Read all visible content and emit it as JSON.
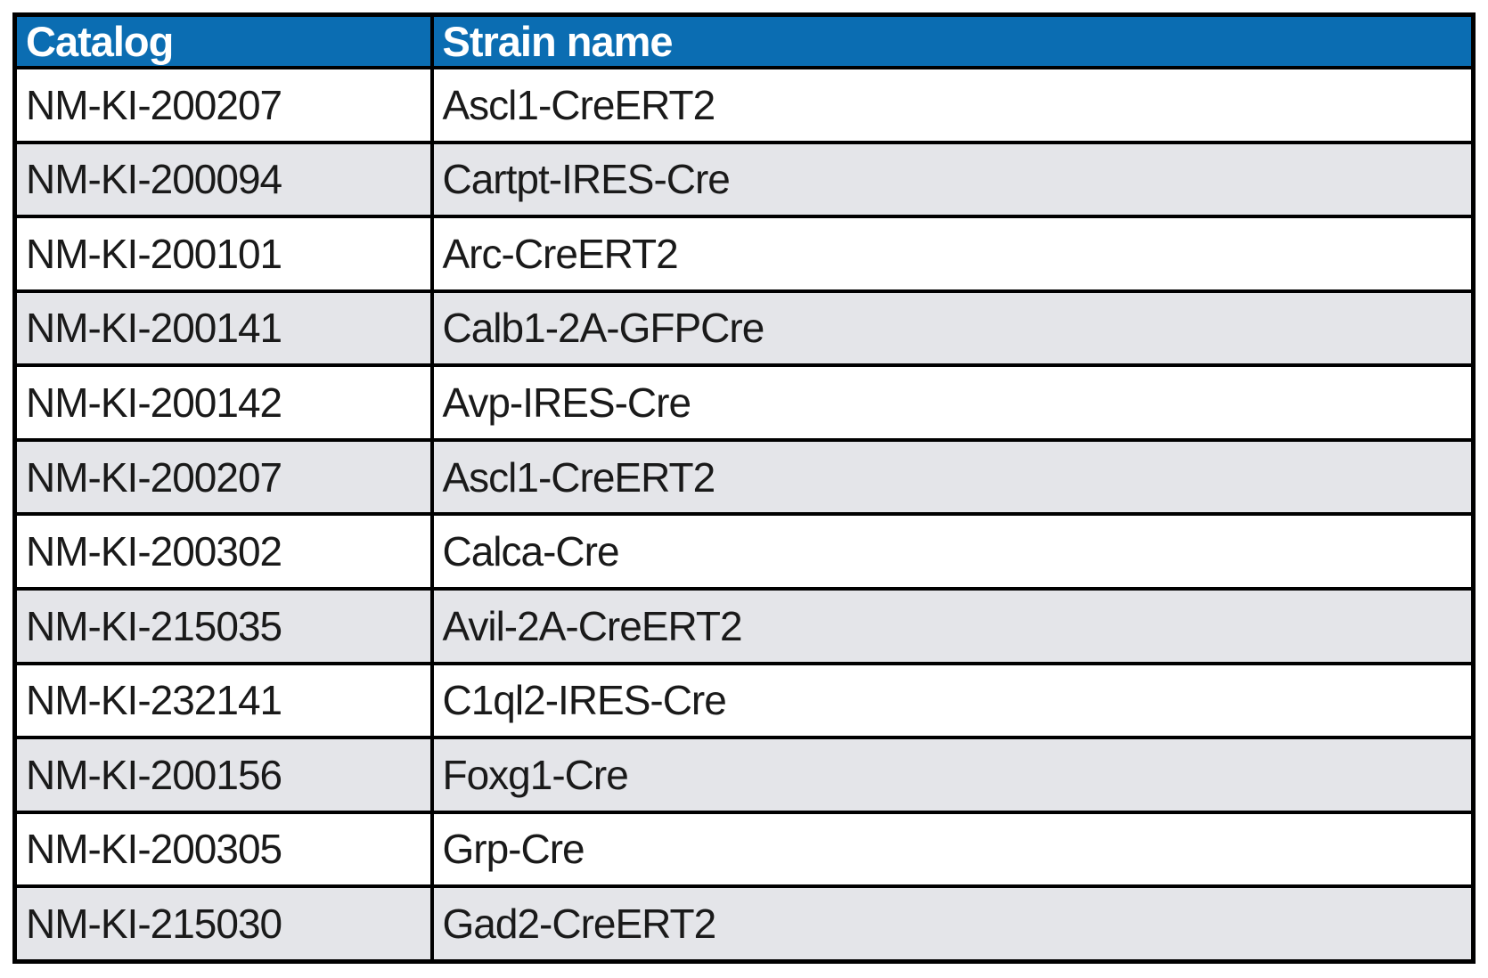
{
  "table": {
    "title": "strain-catalog-table",
    "header": {
      "catalog": "Catalog",
      "strain": "Strain name"
    },
    "rows": [
      {
        "catalog": "NM-KI-200207",
        "strain": "Ascl1-CreERT2"
      },
      {
        "catalog": "NM-KI-200094",
        "strain": "Cartpt-IRES-Cre"
      },
      {
        "catalog": "NM-KI-200101",
        "strain": "Arc-CreERT2"
      },
      {
        "catalog": "NM-KI-200141",
        "strain": "Calb1-2A-GFPCre"
      },
      {
        "catalog": "NM-KI-200142",
        "strain": "Avp-IRES-Cre"
      },
      {
        "catalog": "NM-KI-200207",
        "strain": "Ascl1-CreERT2"
      },
      {
        "catalog": "NM-KI-200302",
        "strain": "Calca-Cre"
      },
      {
        "catalog": "NM-KI-215035",
        "strain": "Avil-2A-CreERT2"
      },
      {
        "catalog": "NM-KI-232141",
        "strain": "C1ql2-IRES-Cre"
      },
      {
        "catalog": "NM-KI-200156",
        "strain": "Foxg1-Cre"
      },
      {
        "catalog": "NM-KI-200305",
        "strain": "Grp-Cre"
      },
      {
        "catalog": "NM-KI-215030",
        "strain": "Gad2-CreERT2"
      }
    ],
    "colors": {
      "header_bg": "#0b6db2",
      "header_text": "#ffffff",
      "row_bg": "#ffffff",
      "row_alt_bg": "#e4e5e9",
      "border": "#000000",
      "body_text": "#1a1a1a"
    }
  }
}
